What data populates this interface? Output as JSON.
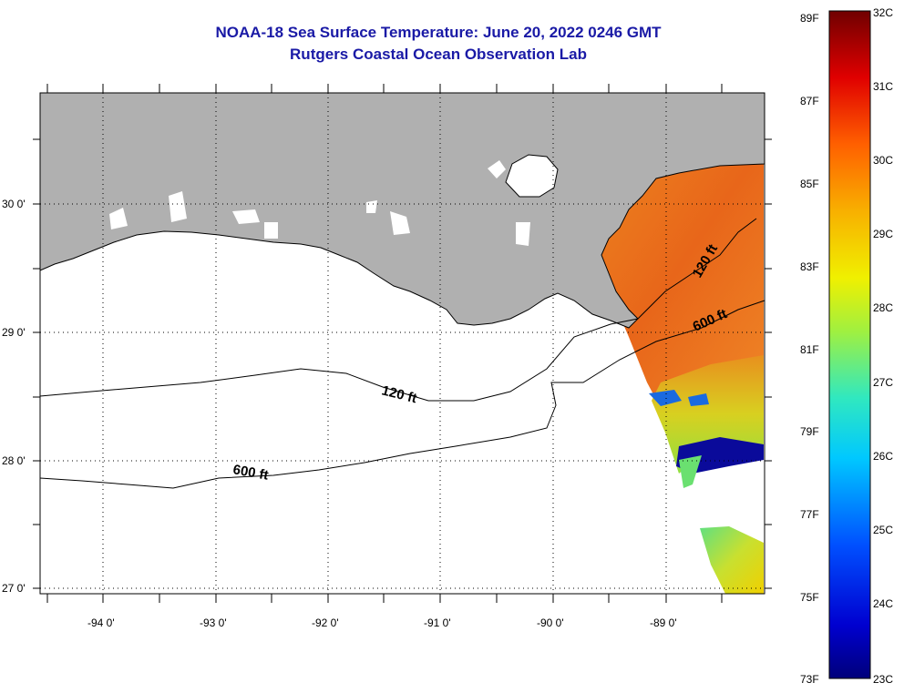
{
  "title_line1": "NOAA-18 Sea Surface Temperature:  June 20, 2022 0246 GMT",
  "title_line2": "Rutgers Coastal Ocean Observation Lab",
  "map": {
    "lon_ticks": [
      "-94 0'",
      "-93 0'",
      "-92 0'",
      "-91 0'",
      "-90 0'",
      "-89 0'"
    ],
    "lat_ticks": [
      "30 0'",
      "29 0'",
      "28 0'",
      "27 0'"
    ],
    "contour_labels": [
      "120 ft",
      "600 ft",
      "120 ft",
      "600 ft"
    ]
  },
  "colorbar": {
    "celsius_labels": [
      "32C",
      "31C",
      "30C",
      "29C",
      "28C",
      "27C",
      "26C",
      "25C",
      "24C",
      "23C"
    ],
    "fahrenheit_labels": [
      "89F",
      "87F",
      "85F",
      "83F",
      "81F",
      "79F",
      "77F",
      "75F",
      "73F"
    ]
  },
  "colors": {
    "title": "#1a1aa6",
    "land": "#b0b0b0",
    "warm": "#e8641a",
    "cold": "#0a0a9a"
  }
}
